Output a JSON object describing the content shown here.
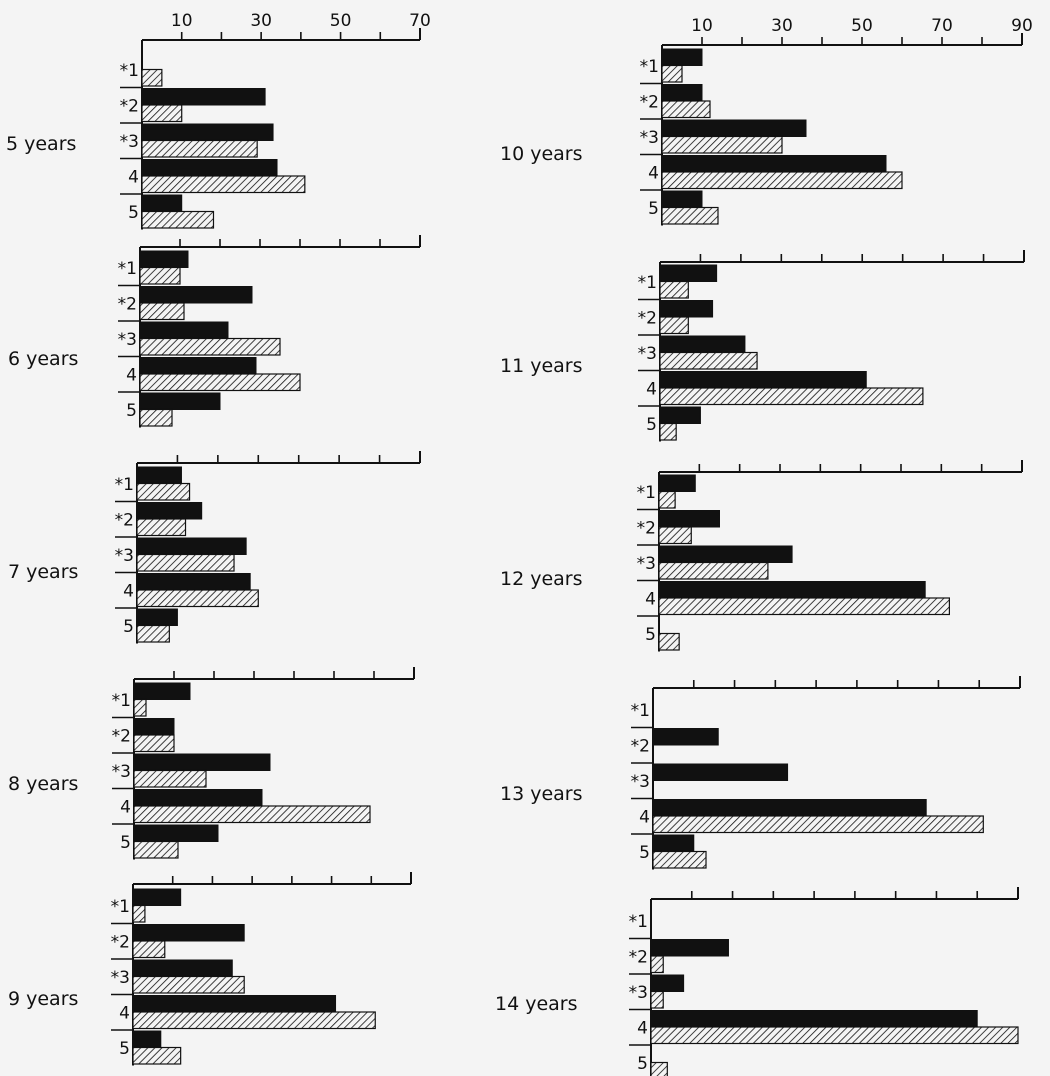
{
  "chart_data": [
    {
      "type": "bar",
      "orientation": "horizontal",
      "panel_label": "5 years",
      "categories": [
        "*1",
        "*2",
        "*3",
        "4",
        "5"
      ],
      "series": [
        {
          "values": [
            0,
            31,
            33,
            34,
            10
          ]
        },
        {
          "values": [
            5,
            10,
            29,
            41,
            18
          ]
        }
      ],
      "xlim": [
        0,
        70
      ],
      "xticks": [
        10,
        30,
        50,
        70
      ],
      "grid": false
    },
    {
      "type": "bar",
      "orientation": "horizontal",
      "panel_label": "6 years",
      "categories": [
        "*1",
        "*2",
        "*3",
        "4",
        "5"
      ],
      "series": [
        {
          "values": [
            12,
            28,
            22,
            29,
            20
          ]
        },
        {
          "values": [
            10,
            11,
            35,
            40,
            8
          ]
        }
      ],
      "xlim": [
        0,
        70
      ],
      "grid": false
    },
    {
      "type": "bar",
      "orientation": "horizontal",
      "panel_label": "7 years",
      "categories": [
        "*1",
        "*2",
        "*3",
        "4",
        "5"
      ],
      "series": [
        {
          "values": [
            11,
            16,
            27,
            28,
            10
          ]
        },
        {
          "values": [
            13,
            12,
            24,
            30,
            8
          ]
        }
      ],
      "xlim": [
        0,
        70
      ],
      "grid": false
    },
    {
      "type": "bar",
      "orientation": "horizontal",
      "panel_label": "8 years",
      "categories": [
        "*1",
        "*2",
        "*3",
        "4",
        "5"
      ],
      "series": [
        {
          "values": [
            14,
            10,
            34,
            32,
            21
          ]
        },
        {
          "values": [
            3,
            10,
            18,
            59,
            11
          ]
        }
      ],
      "xlim": [
        0,
        70
      ],
      "grid": false
    },
    {
      "type": "bar",
      "orientation": "horizontal",
      "panel_label": "9 years",
      "categories": [
        "*1",
        "*2",
        "*3",
        "4",
        "5"
      ],
      "series": [
        {
          "values": [
            12,
            28,
            25,
            51,
            7
          ]
        },
        {
          "values": [
            3,
            8,
            28,
            61,
            12
          ]
        }
      ],
      "xlim": [
        0,
        70
      ],
      "grid": false
    },
    {
      "type": "bar",
      "orientation": "horizontal",
      "panel_label": "10 years",
      "categories": [
        "*1",
        "*2",
        "*3",
        "4",
        "5"
      ],
      "series": [
        {
          "values": [
            10,
            10,
            36,
            56,
            10
          ]
        },
        {
          "values": [
            5,
            12,
            30,
            60,
            14
          ]
        }
      ],
      "xlim": [
        0,
        90
      ],
      "xticks": [
        10,
        30,
        50,
        70,
        90
      ],
      "grid": false
    },
    {
      "type": "bar",
      "orientation": "horizontal",
      "panel_label": "11 years",
      "categories": [
        "*1",
        "*2",
        "*3",
        "4",
        "5"
      ],
      "series": [
        {
          "values": [
            14,
            13,
            21,
            51,
            10
          ]
        },
        {
          "values": [
            7,
            7,
            24,
            65,
            4
          ]
        }
      ],
      "xlim": [
        0,
        90
      ],
      "grid": false
    },
    {
      "type": "bar",
      "orientation": "horizontal",
      "panel_label": "12 years",
      "categories": [
        "*1",
        "*2",
        "*3",
        "4",
        "5"
      ],
      "series": [
        {
          "values": [
            9,
            15,
            33,
            66,
            0
          ]
        },
        {
          "values": [
            4,
            8,
            27,
            72,
            5
          ]
        }
      ],
      "xlim": [
        0,
        90
      ],
      "grid": false
    },
    {
      "type": "bar",
      "orientation": "horizontal",
      "panel_label": "13 years",
      "categories": [
        "*1",
        "*2",
        "*3",
        "4",
        "5"
      ],
      "series": [
        {
          "values": [
            0,
            16,
            33,
            67,
            10
          ]
        },
        {
          "values": [
            0,
            0,
            0,
            81,
            13
          ]
        }
      ],
      "xlim": [
        0,
        90
      ],
      "grid": false
    },
    {
      "type": "bar",
      "orientation": "horizontal",
      "panel_label": "14 years",
      "categories": [
        "*1",
        "*2",
        "*3",
        "4",
        "5"
      ],
      "series": [
        {
          "values": [
            0,
            19,
            8,
            80,
            0
          ]
        },
        {
          "values": [
            0,
            3,
            3,
            90,
            4
          ]
        }
      ],
      "xlim": [
        0,
        90
      ],
      "grid": false
    }
  ],
  "style": {
    "solid_color": "#111111",
    "hatch_color": "#111111",
    "background": "#f4f4f4"
  }
}
